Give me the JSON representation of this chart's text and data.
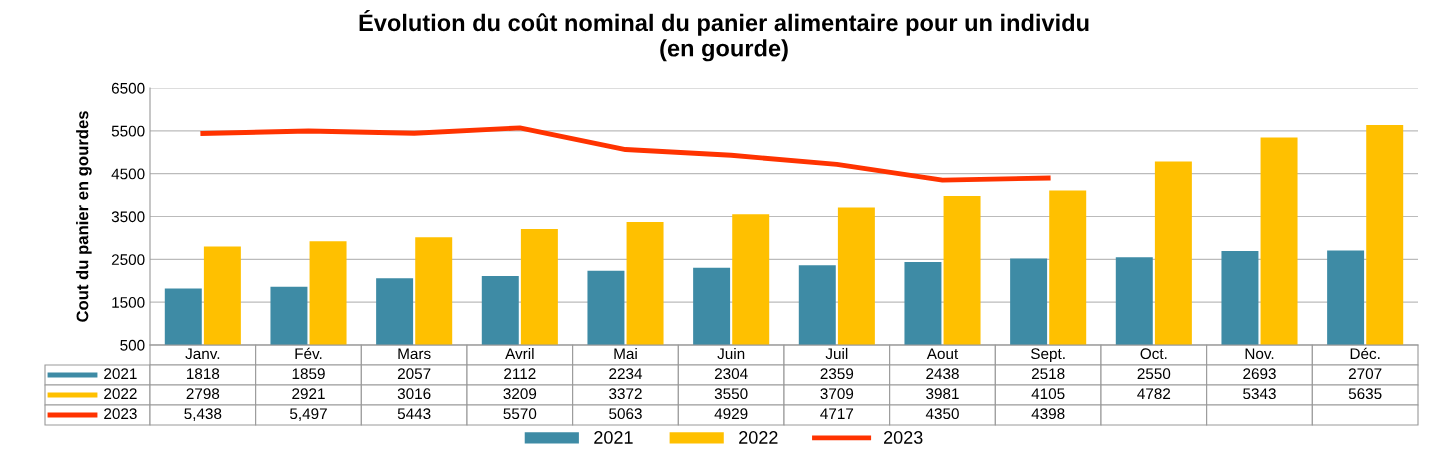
{
  "chart_data": {
    "type": "bar",
    "title": "Évolution du coût nominal du panier alimentaire pour un individu\n(en gourde)",
    "ylabel": "Cout du panier en gourdes",
    "categories": [
      "Janv.",
      "Fév.",
      "Mars",
      "Avril",
      "Mai",
      "Juin",
      "Juil",
      "Aout",
      "Sept.",
      "Oct.",
      "Nov.",
      "Déc."
    ],
    "series": [
      {
        "name": "2021",
        "color": "#3e8ba5",
        "values": [
          1818,
          1859,
          2057,
          2112,
          2234,
          2304,
          2359,
          2438,
          2518,
          2550,
          2693,
          2707
        ],
        "value_labels": [
          "1818",
          "1859",
          "2057",
          "2112",
          "2234",
          "2304",
          "2359",
          "2438",
          "2518",
          "2550",
          "2693",
          "2707"
        ]
      },
      {
        "name": "2022",
        "color": "#ffc000",
        "values": [
          2798,
          2921,
          3016,
          3209,
          3372,
          3550,
          3709,
          3981,
          4105,
          4782,
          5343,
          5635
        ],
        "value_labels": [
          "2798",
          "2921",
          "3016",
          "3209",
          "3372",
          "3550",
          "3709",
          "3981",
          "4105",
          "4782",
          "5343",
          "5635"
        ]
      },
      {
        "name": "2023",
        "color": "#ff3300",
        "type": "line",
        "values": [
          5438,
          5497,
          5443,
          5570,
          5063,
          4929,
          4717,
          4350,
          4398,
          null,
          null,
          null
        ],
        "value_labels": [
          "5,438",
          "5,497",
          "5443",
          "5570",
          "5063",
          "4929",
          "4717",
          "4350",
          "4398",
          null,
          null,
          null
        ]
      }
    ],
    "ylim": [
      500,
      6500
    ],
    "yticks": [
      500,
      1500,
      2500,
      3500,
      4500,
      5500,
      6500
    ],
    "grid": "y",
    "legend": "bottom",
    "marker": "none",
    "line_style": "solid"
  }
}
